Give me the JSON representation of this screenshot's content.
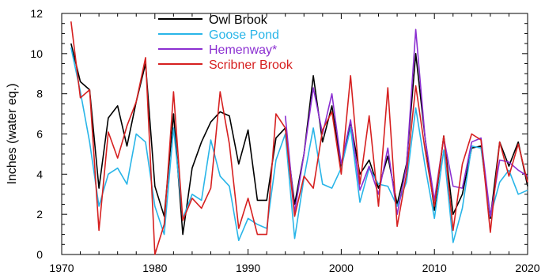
{
  "chart_data": {
    "type": "line",
    "title": "",
    "xlabel": "",
    "ylabel": "Inches (water eq.)",
    "xlim": [
      1970,
      2020
    ],
    "ylim": [
      0,
      12
    ],
    "x_ticks": [
      1970,
      1980,
      1990,
      2000,
      2010,
      2020
    ],
    "y_ticks": [
      0,
      2,
      4,
      6,
      8,
      10,
      12
    ],
    "grid": false,
    "legend_position": "top-center",
    "series": [
      {
        "name": "Owl Brook",
        "color": "#000000",
        "points": [
          [
            1971,
            10.5
          ],
          [
            1972,
            8.6
          ],
          [
            1973,
            8.2
          ],
          [
            1974,
            3.3
          ],
          [
            1975,
            6.8
          ],
          [
            1976,
            7.4
          ],
          [
            1977,
            5.4
          ],
          [
            1978,
            7.6
          ],
          [
            1979,
            9.5
          ],
          [
            1980,
            3.4
          ],
          [
            1981,
            1.9
          ],
          [
            1982,
            7.0
          ],
          [
            1983,
            1.0
          ],
          [
            1984,
            4.3
          ],
          [
            1985,
            5.6
          ],
          [
            1986,
            6.6
          ],
          [
            1987,
            7.1
          ],
          [
            1988,
            6.9
          ],
          [
            1989,
            4.5
          ],
          [
            1990,
            6.2
          ],
          [
            1991,
            2.7
          ],
          [
            1992,
            2.7
          ],
          [
            1993,
            5.8
          ],
          [
            1994,
            6.3
          ],
          [
            1995,
            2.5
          ],
          [
            1996,
            5.0
          ],
          [
            1997,
            8.9
          ],
          [
            1998,
            5.6
          ],
          [
            1999,
            7.4
          ],
          [
            2000,
            4.3
          ],
          [
            2001,
            6.6
          ],
          [
            2002,
            4.0
          ],
          [
            2003,
            4.7
          ],
          [
            2004,
            3.3
          ],
          [
            2005,
            4.9
          ],
          [
            2006,
            2.5
          ],
          [
            2007,
            4.5
          ],
          [
            2008,
            10.0
          ],
          [
            2009,
            5.8
          ],
          [
            2010,
            2.2
          ],
          [
            2011,
            5.9
          ],
          [
            2012,
            2.0
          ],
          [
            2013,
            3.0
          ],
          [
            2014,
            5.3
          ],
          [
            2015,
            5.4
          ],
          [
            2016,
            1.8
          ],
          [
            2017,
            5.6
          ],
          [
            2018,
            4.4
          ],
          [
            2019,
            5.6
          ],
          [
            2020,
            3.4
          ]
        ]
      },
      {
        "name": "Goose Pond",
        "color": "#29b5e8",
        "points": [
          [
            1971,
            10.3
          ],
          [
            1972,
            8.1
          ],
          [
            1973,
            5.6
          ],
          [
            1974,
            2.4
          ],
          [
            1975,
            4.0
          ],
          [
            1976,
            4.3
          ],
          [
            1977,
            3.5
          ],
          [
            1978,
            6.0
          ],
          [
            1979,
            5.6
          ],
          [
            1980,
            2.4
          ],
          [
            1981,
            1.0
          ],
          [
            1982,
            6.3
          ],
          [
            1983,
            1.8
          ],
          [
            1984,
            3.0
          ],
          [
            1985,
            2.7
          ],
          [
            1986,
            5.7
          ],
          [
            1987,
            3.9
          ],
          [
            1988,
            3.4
          ],
          [
            1989,
            0.7
          ],
          [
            1990,
            1.8
          ],
          [
            1991,
            1.5
          ],
          [
            1992,
            1.3
          ],
          [
            1993,
            4.7
          ],
          [
            1994,
            6.0
          ],
          [
            1995,
            0.8
          ],
          [
            1996,
            3.8
          ],
          [
            1997,
            6.3
          ],
          [
            1998,
            3.5
          ],
          [
            1999,
            3.3
          ],
          [
            2000,
            4.3
          ],
          [
            2001,
            6.3
          ],
          [
            2002,
            2.6
          ],
          [
            2003,
            4.3
          ],
          [
            2004,
            3.5
          ],
          [
            2005,
            3.4
          ],
          [
            2006,
            2.4
          ],
          [
            2007,
            3.6
          ],
          [
            2008,
            7.3
          ],
          [
            2009,
            4.4
          ],
          [
            2010,
            1.8
          ],
          [
            2011,
            5.2
          ],
          [
            2012,
            0.6
          ],
          [
            2013,
            2.3
          ],
          [
            2014,
            5.4
          ],
          [
            2015,
            5.3
          ],
          [
            2016,
            1.9
          ],
          [
            2017,
            3.6
          ],
          [
            2018,
            4.2
          ],
          [
            2019,
            3.0
          ],
          [
            2020,
            3.2
          ]
        ]
      },
      {
        "name": "Hemenway*",
        "color": "#8b2fd1",
        "points": [
          [
            1994,
            6.9
          ],
          [
            1995,
            2.1
          ],
          [
            1996,
            5.0
          ],
          [
            1997,
            8.3
          ],
          [
            1998,
            6.0
          ],
          [
            1999,
            8.0
          ],
          [
            2000,
            4.5
          ],
          [
            2001,
            6.7
          ],
          [
            2002,
            3.2
          ],
          [
            2003,
            4.4
          ],
          [
            2004,
            3.0
          ],
          [
            2005,
            5.3
          ],
          [
            2006,
            2.0
          ],
          [
            2007,
            4.4
          ],
          [
            2008,
            11.2
          ],
          [
            2009,
            5.8
          ],
          [
            2010,
            2.7
          ],
          [
            2011,
            5.8
          ],
          [
            2012,
            3.4
          ],
          [
            2013,
            3.3
          ],
          [
            2014,
            5.6
          ],
          [
            2015,
            5.8
          ],
          [
            2016,
            1.9
          ],
          [
            2017,
            4.7
          ],
          [
            2018,
            4.6
          ],
          [
            2019,
            4.2
          ],
          [
            2020,
            3.9
          ]
        ]
      },
      {
        "name": "Scribner Brook",
        "color": "#d62020",
        "points": [
          [
            1971,
            11.6
          ],
          [
            1972,
            7.8
          ],
          [
            1973,
            8.2
          ],
          [
            1974,
            1.2
          ],
          [
            1975,
            6.1
          ],
          [
            1976,
            4.8
          ],
          [
            1977,
            6.4
          ],
          [
            1978,
            7.6
          ],
          [
            1979,
            9.8
          ],
          [
            1980,
            0.0
          ],
          [
            1981,
            1.5
          ],
          [
            1982,
            8.1
          ],
          [
            1983,
            1.7
          ],
          [
            1984,
            2.8
          ],
          [
            1985,
            2.3
          ],
          [
            1986,
            3.3
          ],
          [
            1987,
            8.1
          ],
          [
            1988,
            5.5
          ],
          [
            1989,
            1.3
          ],
          [
            1990,
            2.8
          ],
          [
            1991,
            1.0
          ],
          [
            1992,
            1.0
          ],
          [
            1993,
            7.0
          ],
          [
            1994,
            6.3
          ],
          [
            1995,
            1.9
          ],
          [
            1996,
            3.9
          ],
          [
            1997,
            3.3
          ],
          [
            1998,
            6.2
          ],
          [
            1999,
            7.1
          ],
          [
            2000,
            4.0
          ],
          [
            2001,
            8.9
          ],
          [
            2002,
            3.5
          ],
          [
            2003,
            6.9
          ],
          [
            2004,
            2.4
          ],
          [
            2005,
            8.3
          ],
          [
            2006,
            1.4
          ],
          [
            2007,
            4.0
          ],
          [
            2008,
            8.4
          ],
          [
            2009,
            5.2
          ],
          [
            2010,
            2.4
          ],
          [
            2011,
            5.9
          ],
          [
            2012,
            1.2
          ],
          [
            2013,
            4.5
          ],
          [
            2014,
            6.0
          ],
          [
            2015,
            5.7
          ],
          [
            2016,
            1.1
          ],
          [
            2017,
            5.6
          ],
          [
            2018,
            3.9
          ],
          [
            2019,
            5.5
          ],
          [
            2020,
            3.6
          ]
        ]
      }
    ]
  }
}
